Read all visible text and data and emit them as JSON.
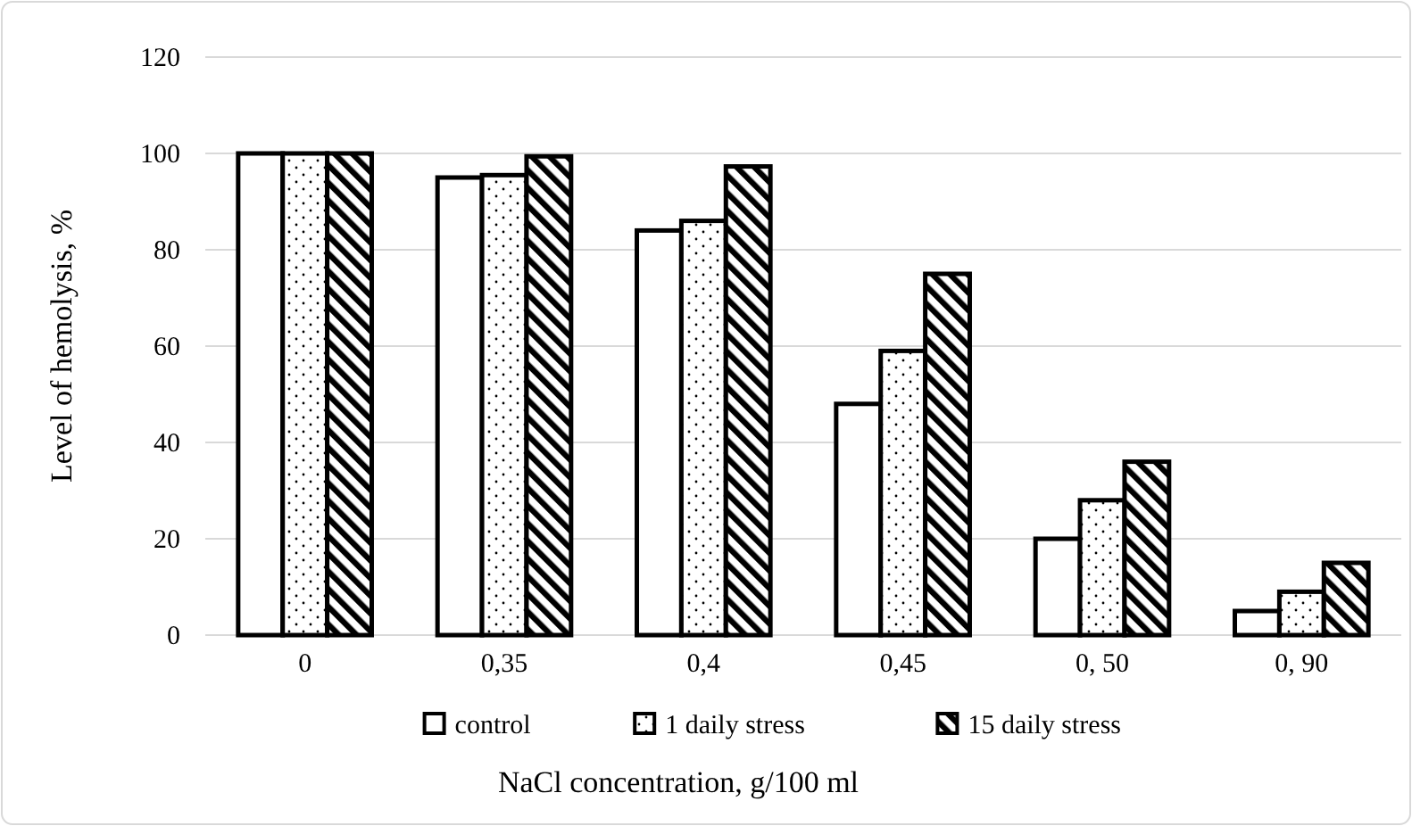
{
  "chart_data": {
    "type": "bar",
    "xlabel": "NaCl concentration, g/100 ml",
    "ylabel": "Level of hemolysis, %",
    "categories": [
      "0",
      "0,35",
      "0,4",
      "0,45",
      "0, 50",
      "0, 90"
    ],
    "series": [
      {
        "name": "control",
        "color": "#ffffff",
        "values": [
          100,
          95,
          84,
          48,
          20,
          5
        ]
      },
      {
        "name": "1 daily stress",
        "color": "#000000",
        "values": [
          100,
          95.5,
          86,
          59,
          28,
          9
        ]
      },
      {
        "name": "15 daily stress",
        "color": "#000000",
        "values": [
          100,
          99.4,
          97.3,
          75,
          36,
          15
        ]
      }
    ],
    "ylim": [
      0,
      120
    ],
    "yticks": [
      0,
      20,
      40,
      60,
      80,
      100,
      120
    ],
    "grid": "y",
    "legend": "bottom"
  }
}
